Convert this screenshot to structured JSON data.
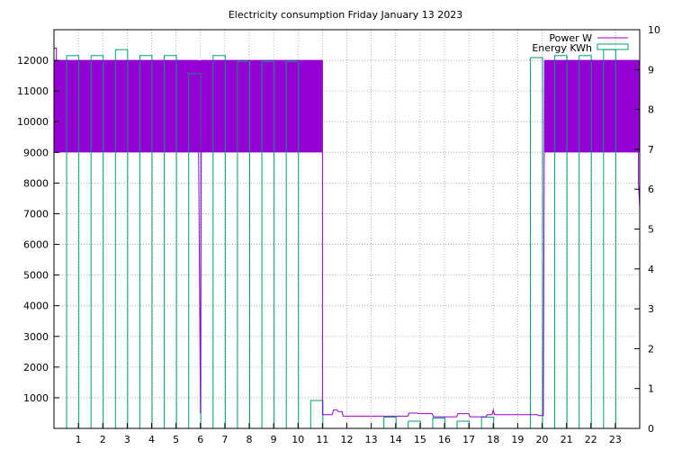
{
  "chart_data": {
    "type": "bar",
    "title": "Electricity consumption Friday January 13 2023",
    "xlabel": "",
    "ylabel": "",
    "y2label": "",
    "x_ticks": [
      1,
      2,
      3,
      4,
      5,
      6,
      7,
      8,
      9,
      10,
      11,
      12,
      13,
      14,
      15,
      16,
      17,
      18,
      19,
      20,
      21,
      22,
      23
    ],
    "xlim": [
      0,
      24
    ],
    "ylim": [
      0,
      13000
    ],
    "y_ticks": [
      1000,
      2000,
      3000,
      4000,
      5000,
      6000,
      7000,
      8000,
      9000,
      10000,
      11000,
      12000
    ],
    "y2lim": [
      0,
      10
    ],
    "y2_ticks": [
      0,
      1,
      2,
      3,
      4,
      5,
      6,
      7,
      8,
      9,
      10
    ],
    "grid": true,
    "legend_position": "top-right",
    "series": [
      {
        "name": "Power W",
        "axis": "left",
        "color": "#9400d3",
        "style": "line",
        "points": [
          [
            0.0,
            12400
          ],
          [
            0.1,
            12400
          ],
          [
            0.1,
            9000
          ],
          [
            0.2,
            12000
          ],
          [
            5.9,
            12000
          ],
          [
            6.0,
            500
          ],
          [
            6.05,
            12000
          ],
          [
            11.0,
            12000
          ],
          [
            11.0,
            450
          ],
          [
            11.4,
            450
          ],
          [
            11.45,
            600
          ],
          [
            11.6,
            600
          ],
          [
            11.65,
            550
          ],
          [
            11.8,
            550
          ],
          [
            11.85,
            400
          ],
          [
            14.5,
            400
          ],
          [
            14.55,
            500
          ],
          [
            14.9,
            500
          ],
          [
            14.95,
            480
          ],
          [
            15.5,
            480
          ],
          [
            15.55,
            380
          ],
          [
            16.5,
            380
          ],
          [
            16.55,
            480
          ],
          [
            17.0,
            480
          ],
          [
            17.05,
            380
          ],
          [
            17.7,
            380
          ],
          [
            17.75,
            450
          ],
          [
            17.95,
            450
          ],
          [
            18.0,
            600
          ],
          [
            18.05,
            450
          ],
          [
            19.8,
            450
          ],
          [
            19.85,
            420
          ],
          [
            20.05,
            420
          ],
          [
            20.1,
            12000
          ],
          [
            23.95,
            12000
          ],
          [
            23.95,
            8000
          ],
          [
            24.0,
            7200
          ]
        ],
        "fill_bands": [
          {
            "x_start": 0.0,
            "x_end": 11.0,
            "y_low": 9000,
            "y_high": 12000
          },
          {
            "x_start": 20.1,
            "x_end": 24.0,
            "y_low": 9000,
            "y_high": 12000
          }
        ]
      },
      {
        "name": "Energy KWh",
        "axis": "right",
        "color": "#009e73",
        "style": "boxes",
        "x": [
          1,
          2,
          3,
          4,
          5,
          6,
          7,
          8,
          9,
          10,
          11,
          14,
          15,
          16,
          17,
          18,
          20,
          21,
          22,
          23
        ],
        "values": [
          9.35,
          9.35,
          9.5,
          9.35,
          9.35,
          8.9,
          9.35,
          9.2,
          9.2,
          9.2,
          0.7,
          0.28,
          0.18,
          0.26,
          0.18,
          0.28,
          9.3,
          9.35,
          9.35,
          9.5
        ]
      }
    ]
  }
}
